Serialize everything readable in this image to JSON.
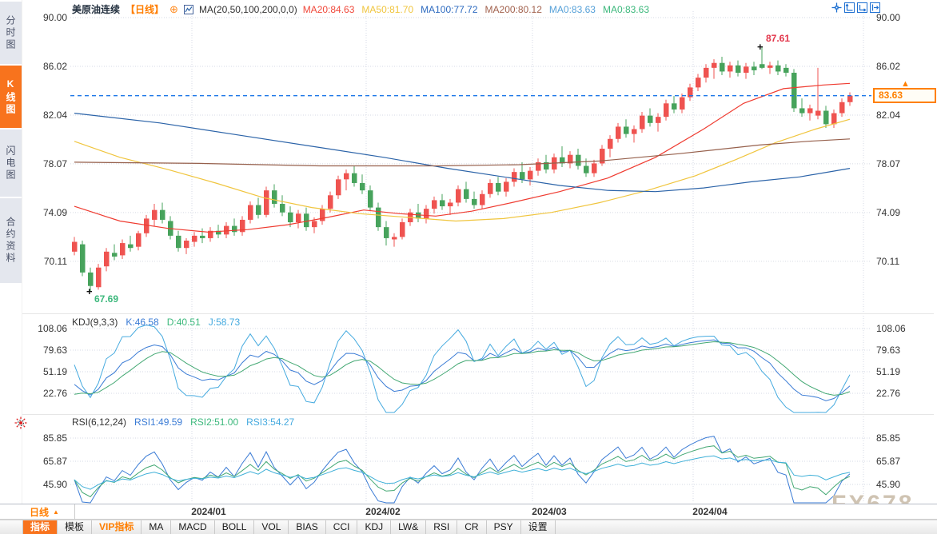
{
  "sidebar": {
    "tabs": [
      {
        "label": "分时图",
        "active": false
      },
      {
        "label": "K线图",
        "active": true
      },
      {
        "label": "闪电图",
        "active": false
      },
      {
        "label": "合约资料",
        "active": false
      }
    ]
  },
  "header": {
    "title": "美原油连续",
    "period_tag": "【日线】",
    "add_icon": "⊕",
    "ma_setting": "MA(20,50,100,200,0,0)",
    "ma_values": [
      {
        "label": "MA20:84.63",
        "color": "#f0483a"
      },
      {
        "label": "MA50:81.70",
        "color": "#f0c53e"
      },
      {
        "label": "MA100:77.72",
        "color": "#2e6bc0"
      },
      {
        "label": "MA200:80.12",
        "color": "#a2624e"
      },
      {
        "label": "MA0:83.63",
        "color": "#55a0d8"
      },
      {
        "label": "MA0:83.63",
        "color": "#3cb87c"
      }
    ]
  },
  "kdj_header": {
    "name": "KDJ(9,3,3)",
    "k": "K:46.58",
    "d": "D:40.51",
    "j": "J:58.73"
  },
  "rsi_header": {
    "name": "RSI(6,12,24)",
    "r1": "RSI1:49.59",
    "r2": "RSI2:51.00",
    "r3": "RSI3:54.27"
  },
  "price_marker": {
    "value": "83.63",
    "arrow": "▲"
  },
  "annotations": {
    "high": "87.61",
    "low": "67.69",
    "marker": "+"
  },
  "watermark": "FX678",
  "xaxis": {
    "period_label": "日线",
    "dropdown_arrow": "▲",
    "months": [
      "2024/01",
      "2024/02",
      "2024/03",
      "2024/04"
    ]
  },
  "toolbar": {
    "items": [
      {
        "label": "指标",
        "style": "active"
      },
      {
        "label": "模板"
      },
      {
        "label": "VIP指标",
        "style": "vip"
      },
      {
        "label": "MA"
      },
      {
        "label": "MACD"
      },
      {
        "label": "BOLL"
      },
      {
        "label": "VOL"
      },
      {
        "label": "BIAS"
      },
      {
        "label": "CCI"
      },
      {
        "label": "KDJ"
      },
      {
        "label": "LW&"
      },
      {
        "label": "RSI"
      },
      {
        "label": "CR"
      },
      {
        "label": "PSY"
      },
      {
        "label": "设置"
      }
    ]
  },
  "chart_data": {
    "type": "candlestick",
    "instrument": "美原油连续",
    "interval": "日线",
    "current_price": 83.63,
    "y_axis_ticks": [
      "90.00",
      "86.02",
      "82.04",
      "78.07",
      "74.09",
      "70.11"
    ],
    "y_tick_values": [
      90.0,
      86.02,
      82.04,
      78.07,
      74.09,
      70.11
    ],
    "kdj_ticks": [
      "108.06",
      "79.63",
      "51.19",
      "22.76"
    ],
    "kdj_tick_values": [
      108.06,
      79.63,
      51.19,
      22.76
    ],
    "rsi_ticks": [
      "85.85",
      "65.87",
      "45.90"
    ],
    "rsi_tick_values": [
      85.85,
      65.87,
      45.9
    ],
    "months": [
      "2024/01",
      "2024/02",
      "2024/03",
      "2024/04"
    ],
    "high_marker": {
      "price": 87.61,
      "index": 86
    },
    "low_marker": {
      "price": 67.69,
      "index": 2
    },
    "candles": [
      [
        70.9,
        72.1,
        70.6,
        71.7
      ],
      [
        71.5,
        71.8,
        68.9,
        69.2
      ],
      [
        69.2,
        69.6,
        67.69,
        68.1
      ],
      [
        68.0,
        69.9,
        67.8,
        69.6
      ],
      [
        69.7,
        71.2,
        69.3,
        70.9
      ],
      [
        70.8,
        71.5,
        70.2,
        70.5
      ],
      [
        70.6,
        71.9,
        70.3,
        71.6
      ],
      [
        71.5,
        72.2,
        70.9,
        71.2
      ],
      [
        71.3,
        72.6,
        71.0,
        72.4
      ],
      [
        72.4,
        73.9,
        72.1,
        73.6
      ],
      [
        73.5,
        74.8,
        73.0,
        74.3
      ],
      [
        74.3,
        74.9,
        73.2,
        73.5
      ],
      [
        73.4,
        73.8,
        71.9,
        72.2
      ],
      [
        72.2,
        72.6,
        70.9,
        71.2
      ],
      [
        71.2,
        72.0,
        70.7,
        71.8
      ],
      [
        71.7,
        72.5,
        71.3,
        72.2
      ],
      [
        72.2,
        72.8,
        71.6,
        72.0
      ],
      [
        72.0,
        72.9,
        71.7,
        72.6
      ],
      [
        72.6,
        73.1,
        72.0,
        72.3
      ],
      [
        72.3,
        73.3,
        72.0,
        73.0
      ],
      [
        73.0,
        73.6,
        72.2,
        72.5
      ],
      [
        72.5,
        73.8,
        72.2,
        73.5
      ],
      [
        73.5,
        75.0,
        73.2,
        74.7
      ],
      [
        74.7,
        75.3,
        73.6,
        73.9
      ],
      [
        73.9,
        76.2,
        73.7,
        75.9
      ],
      [
        75.9,
        76.4,
        74.5,
        74.8
      ],
      [
        74.8,
        75.5,
        73.8,
        74.1
      ],
      [
        74.1,
        74.6,
        72.9,
        73.3
      ],
      [
        73.3,
        74.3,
        72.8,
        74.0
      ],
      [
        74.0,
        74.5,
        72.6,
        72.9
      ],
      [
        72.9,
        73.7,
        72.4,
        73.4
      ],
      [
        73.4,
        74.7,
        73.1,
        74.4
      ],
      [
        74.4,
        75.8,
        74.1,
        75.5
      ],
      [
        75.5,
        77.1,
        75.2,
        76.8
      ],
      [
        76.8,
        77.6,
        75.9,
        77.3
      ],
      [
        77.3,
        77.9,
        76.2,
        76.5
      ],
      [
        76.5,
        77.2,
        75.6,
        75.9
      ],
      [
        75.9,
        76.3,
        74.2,
        74.5
      ],
      [
        74.5,
        74.9,
        72.6,
        72.9
      ],
      [
        72.9,
        73.4,
        71.4,
        72.0
      ],
      [
        71.9,
        72.4,
        71.3,
        72.1
      ],
      [
        72.1,
        73.6,
        71.9,
        73.3
      ],
      [
        73.3,
        74.4,
        73.0,
        74.1
      ],
      [
        74.1,
        74.8,
        73.3,
        73.6
      ],
      [
        73.6,
        74.7,
        73.2,
        74.4
      ],
      [
        74.4,
        75.4,
        74.0,
        75.1
      ],
      [
        75.1,
        75.6,
        74.3,
        74.6
      ],
      [
        74.6,
        75.2,
        73.9,
        74.9
      ],
      [
        74.9,
        76.3,
        74.6,
        76.0
      ],
      [
        76.0,
        76.6,
        74.9,
        75.2
      ],
      [
        75.2,
        75.8,
        74.4,
        74.7
      ],
      [
        74.7,
        75.9,
        74.4,
        75.6
      ],
      [
        75.6,
        76.8,
        75.3,
        76.5
      ],
      [
        76.5,
        77.0,
        75.5,
        75.8
      ],
      [
        75.8,
        76.9,
        75.4,
        76.6
      ],
      [
        76.6,
        77.7,
        76.2,
        77.4
      ],
      [
        77.4,
        78.2,
        76.5,
        76.8
      ],
      [
        76.8,
        77.8,
        76.3,
        77.5
      ],
      [
        77.5,
        78.5,
        77.1,
        78.2
      ],
      [
        78.2,
        78.8,
        77.3,
        77.6
      ],
      [
        77.6,
        78.9,
        77.3,
        78.6
      ],
      [
        78.6,
        79.5,
        77.8,
        78.1
      ],
      [
        78.1,
        79.1,
        77.7,
        78.8
      ],
      [
        78.8,
        79.3,
        77.6,
        77.9
      ],
      [
        77.9,
        78.5,
        77.0,
        77.3
      ],
      [
        77.3,
        78.4,
        77.0,
        78.1
      ],
      [
        78.1,
        79.6,
        77.9,
        79.3
      ],
      [
        79.3,
        80.4,
        78.6,
        80.1
      ],
      [
        80.1,
        81.4,
        79.8,
        81.1
      ],
      [
        81.1,
        81.7,
        80.2,
        80.5
      ],
      [
        80.5,
        81.2,
        79.8,
        80.9
      ],
      [
        80.9,
        82.3,
        80.6,
        82.0
      ],
      [
        82.0,
        82.6,
        81.1,
        81.4
      ],
      [
        81.4,
        82.2,
        80.7,
        81.9
      ],
      [
        81.9,
        83.3,
        81.6,
        83.0
      ],
      [
        83.0,
        83.6,
        82.2,
        82.5
      ],
      [
        82.5,
        83.8,
        82.2,
        83.5
      ],
      [
        83.5,
        84.6,
        83.2,
        84.3
      ],
      [
        84.3,
        85.4,
        84.0,
        85.1
      ],
      [
        85.1,
        86.2,
        84.7,
        85.9
      ],
      [
        85.9,
        86.6,
        85.0,
        86.3
      ],
      [
        86.3,
        86.8,
        85.3,
        85.6
      ],
      [
        85.6,
        86.4,
        85.1,
        86.1
      ],
      [
        86.1,
        86.5,
        85.2,
        85.5
      ],
      [
        85.5,
        86.3,
        85.0,
        86.0
      ],
      [
        86.0,
        86.4,
        85.3,
        85.7
      ],
      [
        86.2,
        87.61,
        85.8,
        85.9
      ],
      [
        85.9,
        86.4,
        85.4,
        86.1
      ],
      [
        86.1,
        86.5,
        85.3,
        85.6
      ],
      [
        85.9,
        86.2,
        85.2,
        85.5
      ],
      [
        85.5,
        85.8,
        82.3,
        82.6
      ],
      [
        82.6,
        83.4,
        81.9,
        82.2
      ],
      [
        82.2,
        82.9,
        81.6,
        82.6
      ],
      [
        82.0,
        85.9,
        81.7,
        82.4
      ],
      [
        82.4,
        82.8,
        81.0,
        81.3
      ],
      [
        81.3,
        82.5,
        81.0,
        82.2
      ],
      [
        82.2,
        83.4,
        81.9,
        83.1
      ],
      [
        83.1,
        83.9,
        82.8,
        83.63
      ]
    ],
    "ma_lines": [
      {
        "name": "MA20",
        "color": "#ef3b30",
        "points": [
          [
            93,
            74.6
          ],
          [
            150,
            73.4
          ],
          [
            210,
            72.8
          ],
          [
            260,
            72.5
          ],
          [
            310,
            72.7
          ],
          [
            360,
            73.1
          ],
          [
            410,
            73.7
          ],
          [
            455,
            74.3
          ],
          [
            500,
            74.0
          ],
          [
            545,
            73.8
          ],
          [
            590,
            74.2
          ],
          [
            640,
            74.9
          ],
          [
            700,
            75.8
          ],
          [
            760,
            76.9
          ],
          [
            820,
            78.6
          ],
          [
            880,
            80.9
          ],
          [
            930,
            83.0
          ],
          [
            980,
            84.2
          ],
          [
            1030,
            84.5
          ],
          [
            1063,
            84.63
          ]
        ]
      },
      {
        "name": "MA50",
        "color": "#f0c53e",
        "points": [
          [
            93,
            79.9
          ],
          [
            150,
            78.6
          ],
          [
            210,
            77.6
          ],
          [
            270,
            76.5
          ],
          [
            330,
            75.3
          ],
          [
            390,
            74.5
          ],
          [
            450,
            74.0
          ],
          [
            510,
            73.7
          ],
          [
            570,
            73.4
          ],
          [
            630,
            73.6
          ],
          [
            690,
            74.1
          ],
          [
            750,
            74.9
          ],
          [
            810,
            75.9
          ],
          [
            870,
            77.1
          ],
          [
            920,
            78.4
          ],
          [
            970,
            79.8
          ],
          [
            1020,
            80.9
          ],
          [
            1063,
            81.7
          ]
        ]
      },
      {
        "name": "MA100",
        "color": "#2b63a8",
        "points": [
          [
            93,
            82.2
          ],
          [
            200,
            81.4
          ],
          [
            300,
            80.4
          ],
          [
            400,
            79.4
          ],
          [
            480,
            78.6
          ],
          [
            560,
            77.7
          ],
          [
            640,
            76.9
          ],
          [
            700,
            76.3
          ],
          [
            760,
            75.9
          ],
          [
            820,
            75.8
          ],
          [
            880,
            76.1
          ],
          [
            940,
            76.6
          ],
          [
            1000,
            77.0
          ],
          [
            1063,
            77.7
          ]
        ]
      },
      {
        "name": "MA200",
        "color": "#96604c",
        "points": [
          [
            93,
            78.2
          ],
          [
            250,
            78.1
          ],
          [
            400,
            77.9
          ],
          [
            550,
            77.9
          ],
          [
            650,
            78.0
          ],
          [
            750,
            78.3
          ],
          [
            850,
            78.9
          ],
          [
            950,
            79.6
          ],
          [
            1010,
            79.9
          ],
          [
            1063,
            80.1
          ]
        ]
      }
    ],
    "indicators": {
      "kdj": {
        "params": [
          9,
          3,
          3
        ],
        "k": 46.58,
        "d": 40.51,
        "j": 58.73
      },
      "rsi": {
        "params": [
          6,
          12,
          24
        ],
        "rsi1": 49.59,
        "rsi2": 51.0,
        "rsi3": 54.27
      }
    },
    "colors": {
      "up": "#ef5350",
      "down": "#47a35c",
      "grid": "#d6dae4",
      "dashed_line": "#1e78e8",
      "k_line": "#3a7bd5",
      "d_line": "#43a873",
      "j_line": "#45aadf",
      "rsi1_line": "#3a7bd5",
      "rsi2_line": "#43a873",
      "rsi3_line": "#3fb0d8",
      "accent_orange": "#f8731d",
      "price_tag": "#ff8000"
    }
  }
}
